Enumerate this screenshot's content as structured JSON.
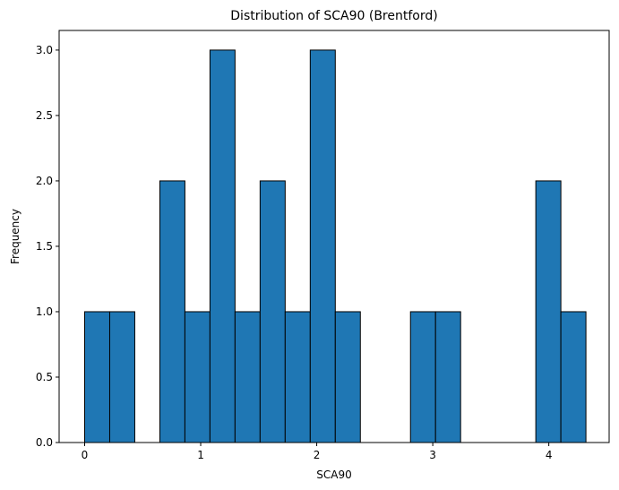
{
  "chart_data": {
    "type": "bar",
    "title": "Distribution of SCA90 (Brentford)",
    "xlabel": "SCA90",
    "ylabel": "Frequency",
    "xlim": [
      -0.22,
      4.52
    ],
    "ylim": [
      0,
      3.15
    ],
    "xticks": [
      0,
      1,
      2,
      3,
      4
    ],
    "xtick_labels": [
      "0",
      "1",
      "2",
      "3",
      "4"
    ],
    "yticks": [
      0,
      0.5,
      1.0,
      1.5,
      2.0,
      2.5,
      3.0
    ],
    "ytick_labels": [
      "0.0",
      "0.5",
      "1.0",
      "1.5",
      "2.0",
      "2.5",
      "3.0"
    ],
    "bin_edges": [
      0,
      0.216,
      0.432,
      0.648,
      0.864,
      1.08,
      1.296,
      1.512,
      1.728,
      1.944,
      2.16,
      2.376,
      2.592,
      2.808,
      3.024,
      3.24,
      3.456,
      3.672,
      3.888,
      4.104,
      4.32
    ],
    "counts": [
      1,
      1,
      0,
      2,
      1,
      3,
      1,
      2,
      1,
      3,
      1,
      0,
      0,
      1,
      1,
      0,
      0,
      0,
      2,
      1
    ],
    "bar_color": "#1f77b4",
    "edge_color": "#000000",
    "grid": false
  }
}
